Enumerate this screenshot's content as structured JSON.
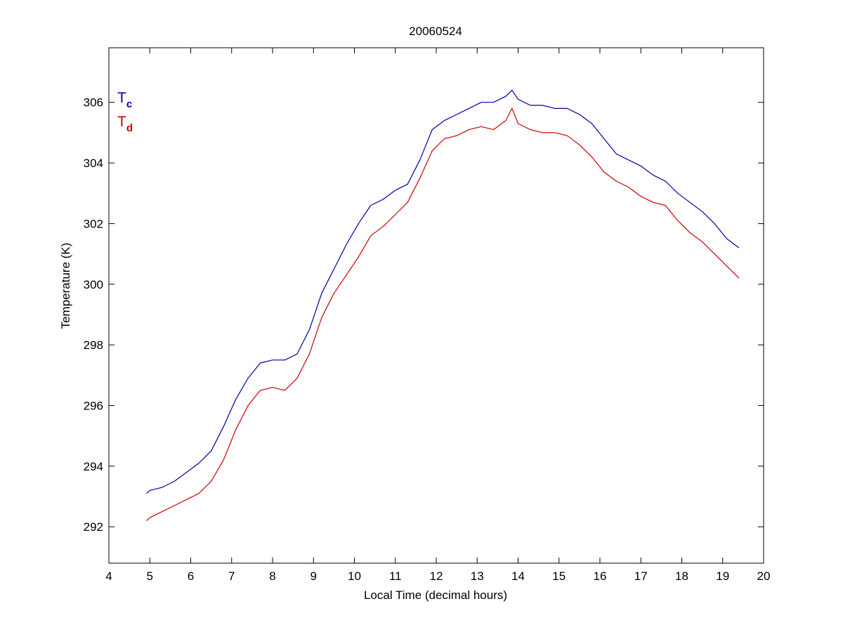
{
  "chart_data": {
    "type": "line",
    "title": "20060524",
    "xlabel": "Local Time (decimal hours)",
    "ylabel": "Temperature (K)",
    "xlim": [
      4,
      20
    ],
    "ylim": [
      290.8,
      307.8
    ],
    "xticks": [
      4,
      5,
      6,
      7,
      8,
      9,
      10,
      11,
      12,
      13,
      14,
      15,
      16,
      17,
      18,
      19,
      20
    ],
    "yticks": [
      292,
      294,
      296,
      298,
      300,
      302,
      304,
      306
    ],
    "grid": false,
    "legend_position": "top-left",
    "series": [
      {
        "name": "Tc",
        "label_main": "T",
        "label_sub": "c",
        "color": "#0000aa",
        "x": [
          4.92,
          5.0,
          5.3,
          5.6,
          5.9,
          6.2,
          6.5,
          6.8,
          7.1,
          7.4,
          7.7,
          8.0,
          8.3,
          8.6,
          8.9,
          9.2,
          9.5,
          9.8,
          10.1,
          10.4,
          10.7,
          11.0,
          11.3,
          11.6,
          11.9,
          12.2,
          12.5,
          12.8,
          13.1,
          13.4,
          13.7,
          13.85,
          14.0,
          14.3,
          14.6,
          14.9,
          15.2,
          15.5,
          15.8,
          16.1,
          16.4,
          16.7,
          17.0,
          17.3,
          17.6,
          17.9,
          18.2,
          18.5,
          18.8,
          19.1,
          19.4
        ],
        "y": [
          293.1,
          293.2,
          293.3,
          293.5,
          293.8,
          294.1,
          294.5,
          295.3,
          296.2,
          296.9,
          297.4,
          297.5,
          297.5,
          297.7,
          298.5,
          299.7,
          300.5,
          301.3,
          302.0,
          302.6,
          302.8,
          303.1,
          303.3,
          304.1,
          305.1,
          305.4,
          305.6,
          305.8,
          306.0,
          306.0,
          306.2,
          306.4,
          306.1,
          305.9,
          305.9,
          305.8,
          305.8,
          305.6,
          305.3,
          304.8,
          304.3,
          304.1,
          303.9,
          303.6,
          303.4,
          303.0,
          302.7,
          302.4,
          302.0,
          301.5,
          301.2
        ]
      },
      {
        "name": "Td",
        "label_main": "T",
        "label_sub": "d",
        "color": "#cc0000",
        "x": [
          4.92,
          5.0,
          5.3,
          5.6,
          5.9,
          6.2,
          6.5,
          6.8,
          7.1,
          7.4,
          7.7,
          8.0,
          8.3,
          8.6,
          8.9,
          9.2,
          9.5,
          9.8,
          10.1,
          10.4,
          10.7,
          11.0,
          11.3,
          11.6,
          11.9,
          12.2,
          12.5,
          12.8,
          13.1,
          13.4,
          13.7,
          13.85,
          14.0,
          14.3,
          14.6,
          14.9,
          15.2,
          15.5,
          15.8,
          16.1,
          16.4,
          16.7,
          17.0,
          17.3,
          17.6,
          17.9,
          18.2,
          18.5,
          18.8,
          19.1,
          19.4
        ],
        "y": [
          292.2,
          292.3,
          292.5,
          292.7,
          292.9,
          293.1,
          293.5,
          294.2,
          295.2,
          296.0,
          296.5,
          296.6,
          296.5,
          296.9,
          297.7,
          298.9,
          299.7,
          300.3,
          300.9,
          301.6,
          301.9,
          302.3,
          302.7,
          303.5,
          304.4,
          304.8,
          304.9,
          305.1,
          305.2,
          305.1,
          305.4,
          305.8,
          305.3,
          305.1,
          305.0,
          305.0,
          304.9,
          304.6,
          304.2,
          303.7,
          303.4,
          303.2,
          302.9,
          302.7,
          302.6,
          302.1,
          301.7,
          301.4,
          301.0,
          300.6,
          300.2
        ]
      }
    ]
  }
}
